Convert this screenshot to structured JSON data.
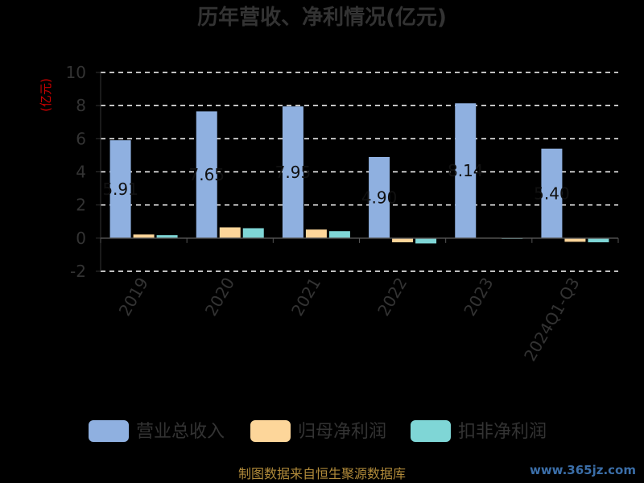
{
  "chart_data": {
    "type": "bar",
    "title": "历年营收、净利情况(亿元)",
    "ylabel": "(亿元)",
    "xlabel": "",
    "categories": [
      "2019",
      "2020",
      "2021",
      "2022",
      "2023",
      "2024Q1-Q3"
    ],
    "series": [
      {
        "name": "营业总收入",
        "color": "#8fb0e0",
        "values": [
          5.91,
          7.65,
          7.95,
          4.9,
          8.14,
          5.4
        ]
      },
      {
        "name": "归母净利润",
        "color": "#fdd69a",
        "values": [
          0.22,
          0.65,
          0.52,
          -0.25,
          0.02,
          -0.22
        ]
      },
      {
        "name": "扣非净利润",
        "color": "#7fd6d6",
        "values": [
          0.18,
          0.6,
          0.42,
          -0.32,
          -0.05,
          -0.25
        ]
      }
    ],
    "data_labels": [
      "5.91",
      "7.65",
      "7.95",
      "4.90",
      "8.14",
      "5.40"
    ],
    "ylim": [
      -2,
      10
    ],
    "yticks": [
      -2,
      0,
      2,
      4,
      6,
      8,
      10
    ],
    "grid": true,
    "legend_position": "bottom"
  },
  "footer": "制图数据来自恒生聚源数据库",
  "watermark": "www.365jz.com"
}
